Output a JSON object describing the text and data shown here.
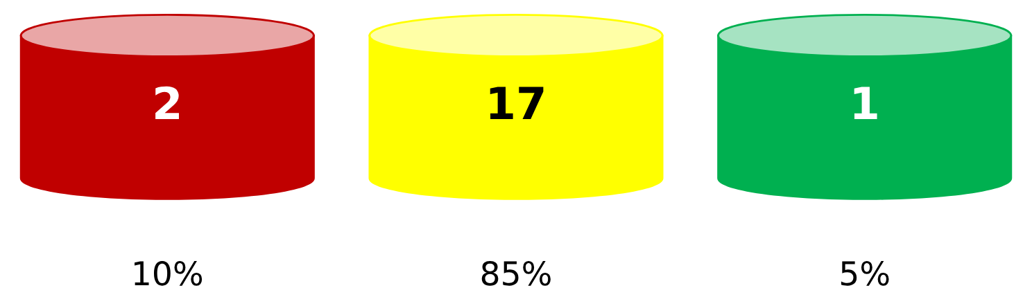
{
  "chart_data": {
    "type": "other",
    "categories": [
      null,
      null,
      null
    ],
    "values": [
      2,
      17,
      1
    ],
    "colors": [
      "#c00000",
      "#ffff00",
      "#00b050"
    ],
    "data_labels": true,
    "annotations": [
      "10%",
      "85%",
      "5%"
    ]
  }
}
